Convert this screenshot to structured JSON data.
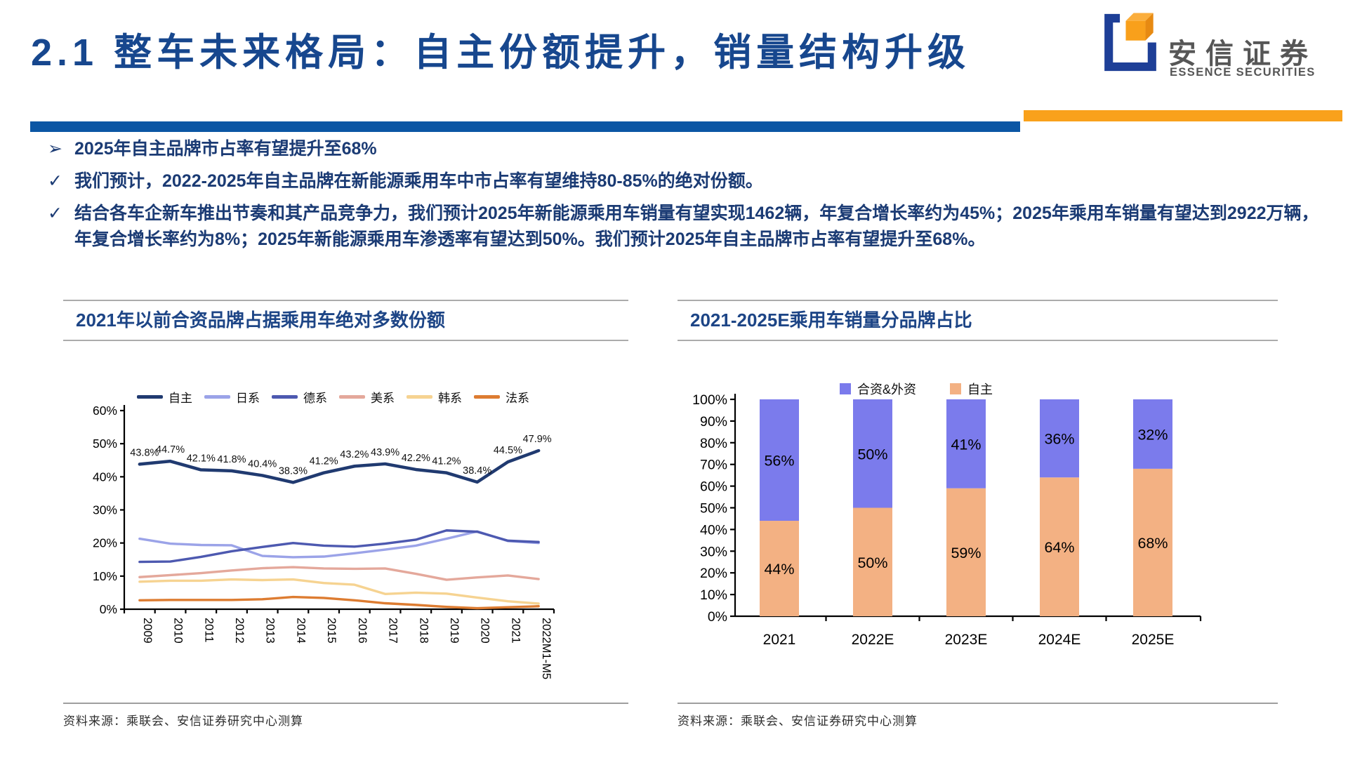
{
  "header": {
    "title": "2.1 整车未来格局：自主份额提升，销量结构升级",
    "logo_cn": "安信证券",
    "logo_en": "ESSENCE SECURITIES",
    "accent_bar_color": "#0B56A4",
    "secondary_bar_color": "#F9A11B"
  },
  "bullets": [
    {
      "marker": "➢",
      "text": "2025年自主品牌市占率有望提升至68%"
    },
    {
      "marker": "✓",
      "text": "我们预计，2022-2025年自主品牌在新能源乘用车中市占率有望维持80-85%的绝对份额。"
    },
    {
      "marker": "✓",
      "text": "结合各车企新车推出节奏和其产品竞争力，我们预计2025年新能源乘用车销量有望实现1462辆，年复合增长率约为45%；2025年乘用车销量有望达到2922万辆，年复合增长率约为8%；2025年新能源乘用车渗透率有望达到50%。我们预计2025年自主品牌市占率有望提升至68%。"
    }
  ],
  "left_panel": {
    "title": "2021年以前合资品牌占据乘用车绝对多数份额",
    "source": "资料来源：乘联会、安信证券研究中心测算"
  },
  "right_panel": {
    "title": "2021-2025E乘用车销量分品牌占比",
    "source": "资料来源：乘联会、安信证券研究中心测算"
  },
  "chart_data": [
    {
      "type": "line",
      "title": "2021年以前合资品牌占据乘用车绝对多数份额",
      "x": [
        "2009",
        "2010",
        "2011",
        "2012",
        "2013",
        "2014",
        "2015",
        "2016",
        "2017",
        "2018",
        "2019",
        "2020",
        "2021",
        "2022M1-M5"
      ],
      "ylabel": "",
      "ylim": [
        0,
        60
      ],
      "ytick_step": 10,
      "ytick_suffix": "%",
      "grid": false,
      "legend_position": "top",
      "series": [
        {
          "name": "自主",
          "color": "#203A70",
          "width": 4.5,
          "labeled": true,
          "values": [
            43.8,
            44.7,
            42.1,
            41.8,
            40.4,
            38.3,
            41.2,
            43.2,
            43.9,
            42.2,
            41.2,
            38.4,
            44.5,
            47.9
          ]
        },
        {
          "name": "日系",
          "color": "#9BA3E8",
          "width": 3.4,
          "labeled": false,
          "values": [
            21.3,
            19.8,
            19.4,
            19.3,
            16.1,
            15.7,
            15.9,
            16.9,
            18.0,
            19.2,
            21.3,
            23.5,
            20.6,
            20.0
          ]
        },
        {
          "name": "德系",
          "color": "#4D59B0",
          "width": 3.4,
          "labeled": false,
          "values": [
            14.3,
            14.4,
            15.8,
            17.5,
            18.8,
            20.0,
            19.2,
            18.9,
            19.8,
            21.0,
            23.8,
            23.4,
            20.7,
            20.3
          ]
        },
        {
          "name": "美系",
          "color": "#E4A89B",
          "width": 3.4,
          "labeled": false,
          "values": [
            9.7,
            10.3,
            10.9,
            11.7,
            12.4,
            12.7,
            12.3,
            12.2,
            12.3,
            10.7,
            8.9,
            9.6,
            10.2,
            9.1
          ]
        },
        {
          "name": "韩系",
          "color": "#F6D391",
          "width": 3.4,
          "labeled": false,
          "values": [
            8.3,
            8.6,
            8.6,
            9.0,
            8.8,
            9.0,
            7.9,
            7.4,
            4.6,
            5.0,
            4.7,
            3.5,
            2.4,
            1.7
          ]
        },
        {
          "name": "法系",
          "color": "#DD7C31",
          "width": 3.4,
          "labeled": false,
          "values": [
            2.7,
            2.8,
            2.8,
            2.8,
            3.0,
            3.7,
            3.4,
            2.7,
            1.8,
            1.3,
            0.7,
            0.3,
            0.6,
            0.9
          ]
        }
      ]
    },
    {
      "type": "stacked-bar",
      "title": "2021-2025E乘用车销量分品牌占比",
      "categories": [
        "2021",
        "2022E",
        "2023E",
        "2024E",
        "2025E"
      ],
      "ylim": [
        0,
        100
      ],
      "ytick_step": 10,
      "ytick_suffix": "%",
      "grid": false,
      "legend_position": "top",
      "label_suffix": "%",
      "series": [
        {
          "name": "自主",
          "color": "#F3B183",
          "values": [
            44,
            50,
            59,
            64,
            68
          ]
        },
        {
          "name": "合资&外资",
          "color": "#7B7BEC",
          "values": [
            56,
            50,
            41,
            36,
            32
          ]
        }
      ],
      "legend_order": [
        "合资&外资",
        "自主"
      ]
    }
  ]
}
